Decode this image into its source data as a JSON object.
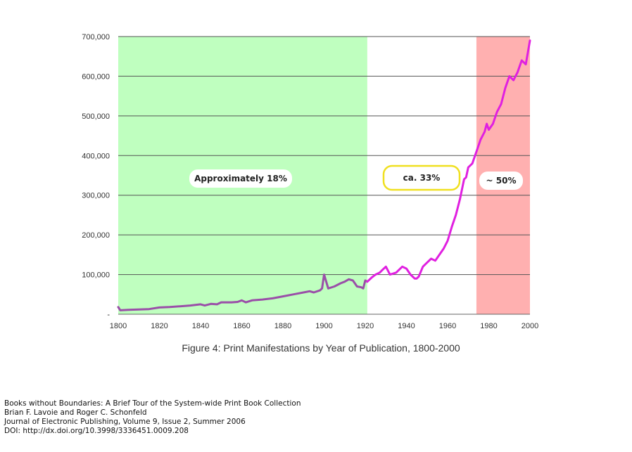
{
  "chart_data": {
    "type": "line",
    "title": "Figure 4: Print Manifestations by Year of Publication, 1800-2000",
    "xlim": [
      1800,
      2000
    ],
    "ylim": [
      0,
      700000
    ],
    "x_ticks": [
      "1800",
      "1820",
      "1840",
      "1860",
      "1880",
      "1900",
      "1920",
      "1940",
      "1960",
      "1980",
      "2000"
    ],
    "y_ticks": [
      "-",
      "100,000",
      "200,000",
      "300,000",
      "400,000",
      "500,000",
      "600,000",
      "700,000"
    ],
    "grid": true,
    "regions": [
      {
        "from": 1800,
        "to": 1921,
        "color": "#bfffbf",
        "label": "Approximately 18%"
      },
      {
        "from": 1921,
        "to": 1974,
        "color": "#ffffff",
        "label": "ca. 33%"
      },
      {
        "from": 1974,
        "to": 2000,
        "color": "#ffb0b0",
        "label": "~ 50%"
      }
    ],
    "series": [
      {
        "segment": "pre-1921",
        "color": "#9a4fa8",
        "x": [
          1800,
          1801,
          1805,
          1810,
          1815,
          1820,
          1825,
          1830,
          1835,
          1840,
          1842,
          1845,
          1848,
          1850,
          1855,
          1858,
          1860,
          1862,
          1865,
          1870,
          1875,
          1880,
          1885,
          1890,
          1893,
          1895,
          1898,
          1899,
          1900,
          1902,
          1905,
          1908,
          1910,
          1912,
          1914,
          1916,
          1918,
          1919,
          1920,
          1921
        ],
        "y": [
          18000,
          10000,
          11000,
          12000,
          13000,
          17000,
          18000,
          20000,
          22000,
          25000,
          22000,
          26000,
          25000,
          30000,
          30000,
          31000,
          35000,
          30000,
          35000,
          37000,
          40000,
          45000,
          50000,
          55000,
          58000,
          55000,
          60000,
          65000,
          100000,
          65000,
          70000,
          78000,
          82000,
          88000,
          85000,
          70000,
          68000,
          65000,
          85000,
          82000
        ]
      },
      {
        "segment": "1921-2000",
        "color": "#e020e0",
        "x": [
          1921,
          1923,
          1925,
          1927,
          1928,
          1930,
          1932,
          1935,
          1938,
          1940,
          1942,
          1944,
          1945,
          1946,
          1948,
          1950,
          1952,
          1954,
          1956,
          1958,
          1960,
          1962,
          1964,
          1966,
          1968,
          1969,
          1970,
          1972,
          1974,
          1976,
          1978,
          1979,
          1980,
          1982,
          1984,
          1986,
          1988,
          1990,
          1992,
          1994,
          1996,
          1998,
          2000
        ],
        "y": [
          82000,
          92000,
          100000,
          105000,
          110000,
          120000,
          100000,
          105000,
          120000,
          115000,
          100000,
          90000,
          90000,
          95000,
          120000,
          130000,
          140000,
          135000,
          150000,
          165000,
          185000,
          220000,
          250000,
          290000,
          340000,
          345000,
          370000,
          380000,
          410000,
          440000,
          460000,
          480000,
          465000,
          480000,
          510000,
          530000,
          570000,
          600000,
          590000,
          610000,
          640000,
          630000,
          690000
        ]
      }
    ]
  },
  "citation": {
    "line1": "Books without Boundaries: A Brief Tour of the System-wide Print Book Collection",
    "line2": "Brian F. Lavoie and Roger C. Schonfeld",
    "line3": "Journal of Electronic Publishing, Volume 9, Issue 2, Summer 2006",
    "line4": "DOI: http://dx.doi.org/10.3998/3336451.0009.208"
  }
}
